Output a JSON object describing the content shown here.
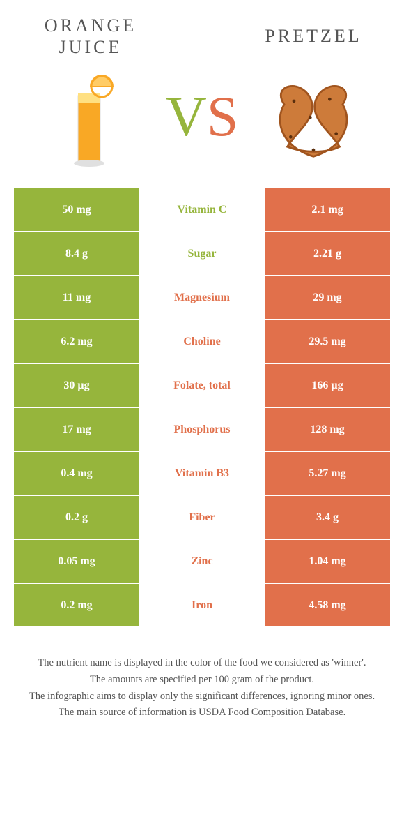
{
  "colors": {
    "left": "#96b53c",
    "right": "#e1704b",
    "text_muted": "#555555",
    "white": "#ffffff"
  },
  "left": {
    "title": "ORANGE\nJUICE"
  },
  "right": {
    "title": "Pretzel"
  },
  "vs": {
    "v": "V",
    "s": "S"
  },
  "rows": [
    {
      "left": "50 mg",
      "label": "Vitamin C",
      "right": "2.1 mg",
      "winner": "left"
    },
    {
      "left": "8.4 g",
      "label": "Sugar",
      "right": "2.21 g",
      "winner": "left"
    },
    {
      "left": "11 mg",
      "label": "Magnesium",
      "right": "29 mg",
      "winner": "right"
    },
    {
      "left": "6.2 mg",
      "label": "Choline",
      "right": "29.5 mg",
      "winner": "right"
    },
    {
      "left": "30 µg",
      "label": "Folate, total",
      "right": "166 µg",
      "winner": "right"
    },
    {
      "left": "17 mg",
      "label": "Phosphorus",
      "right": "128 mg",
      "winner": "right"
    },
    {
      "left": "0.4 mg",
      "label": "Vitamin B3",
      "right": "5.27 mg",
      "winner": "right"
    },
    {
      "left": "0.2 g",
      "label": "Fiber",
      "right": "3.4 g",
      "winner": "right"
    },
    {
      "left": "0.05 mg",
      "label": "Zinc",
      "right": "1.04 mg",
      "winner": "right"
    },
    {
      "left": "0.2 mg",
      "label": "Iron",
      "right": "4.58 mg",
      "winner": "right"
    }
  ],
  "footer": [
    "The nutrient name is displayed in the color of the food we considered as 'winner'.",
    "The amounts are specified per 100 gram of the product.",
    "The infographic aims to display only the significant differences, ignoring minor ones.",
    "The main source of information is USDA Food Composition Database."
  ]
}
